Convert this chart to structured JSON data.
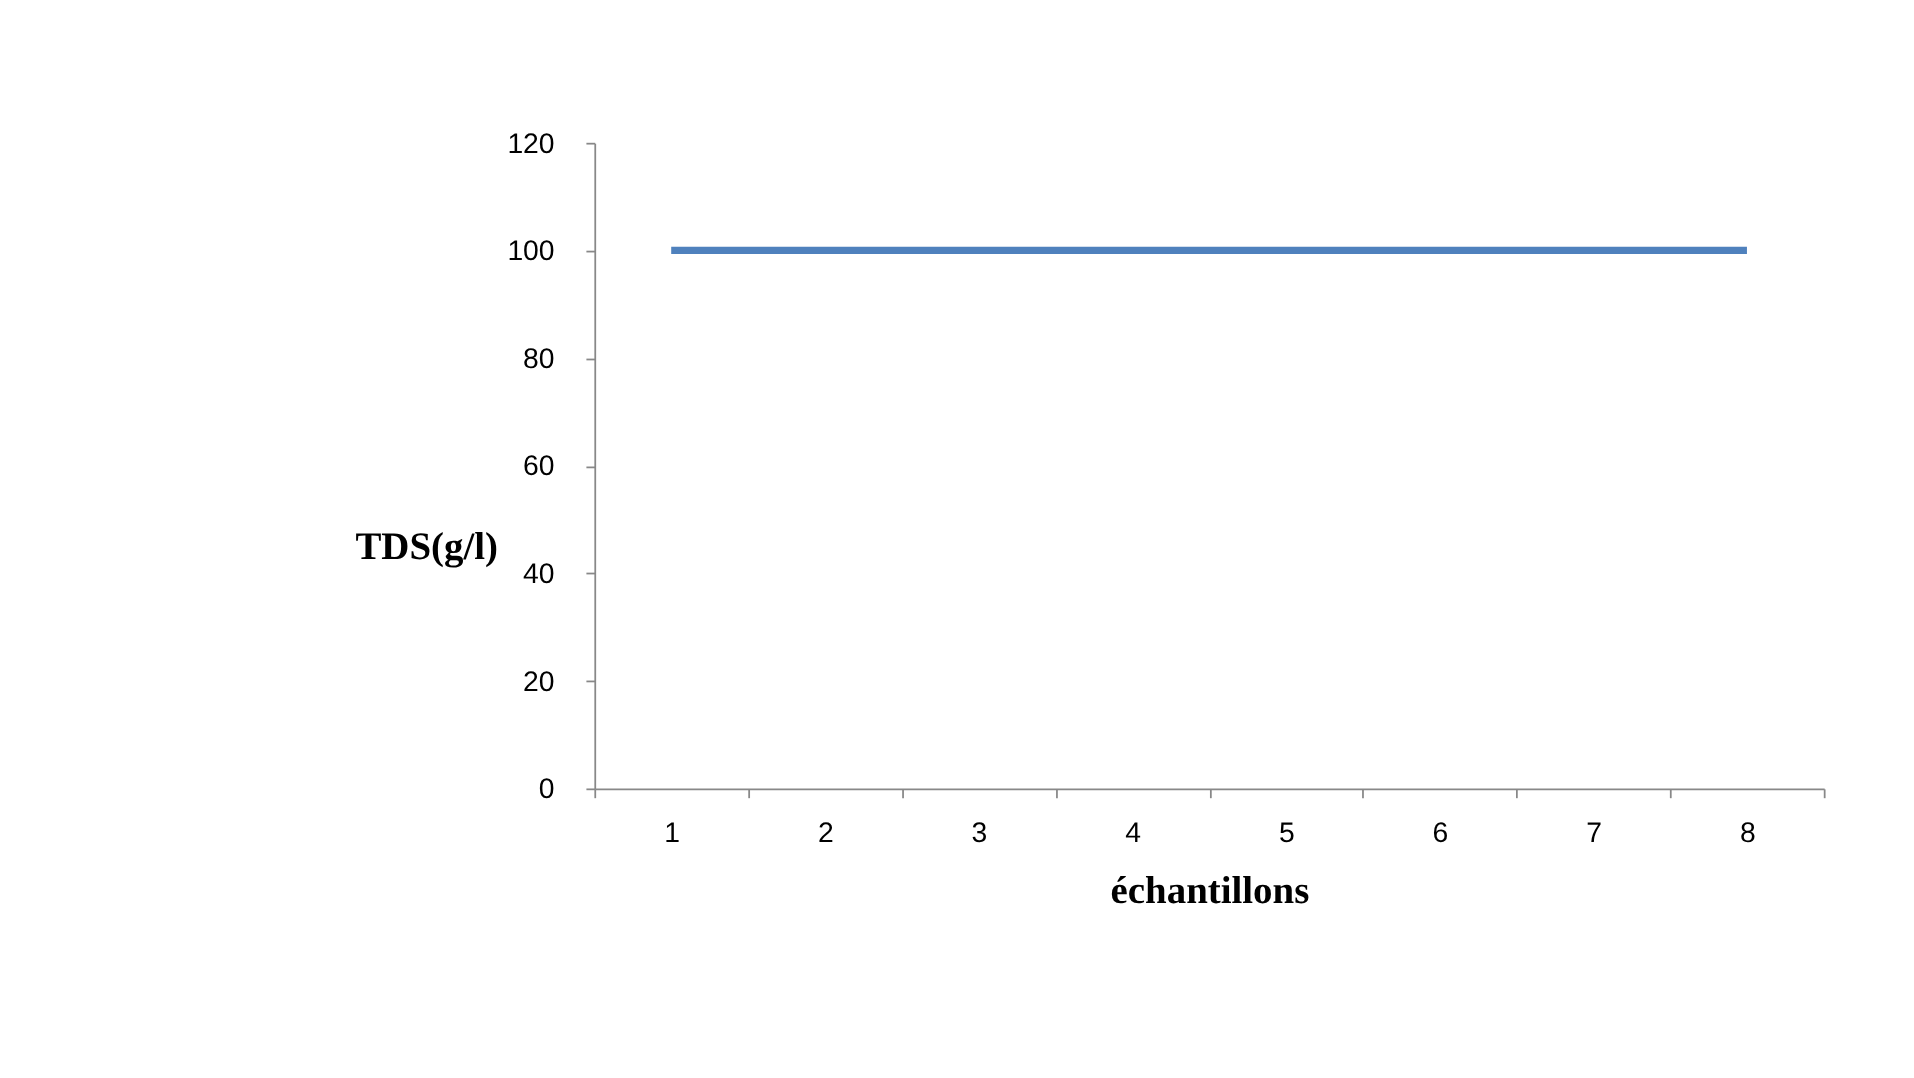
{
  "chart_data": {
    "type": "line",
    "xlabel": "échantillons",
    "ylabel": "TDS(g/l)",
    "categories": [
      "1",
      "2",
      "3",
      "4",
      "5",
      "6",
      "7",
      "8"
    ],
    "series": [
      {
        "color": "#4f81bd",
        "values": [
          100,
          100,
          100,
          100,
          100,
          100,
          100,
          100
        ]
      }
    ],
    "ylim": [
      0,
      120
    ],
    "yticks": [
      0,
      20,
      40,
      60,
      80,
      100,
      120
    ],
    "grid": false,
    "legend": false,
    "marker": "none",
    "line_style": "solid"
  }
}
